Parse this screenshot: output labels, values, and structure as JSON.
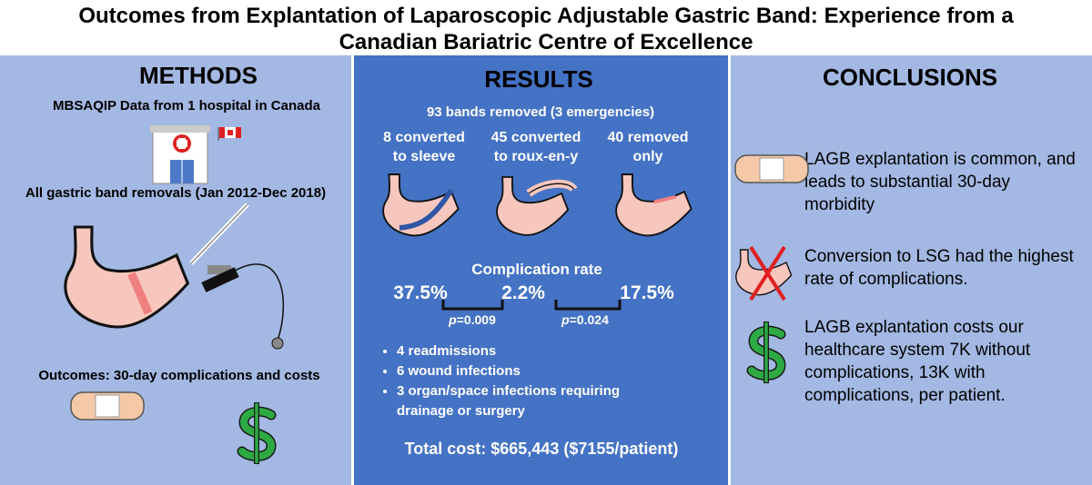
{
  "header": {
    "title_lines": [
      "Outcomes from Explantation of Laparoscopic Adjustable Gastric Band: Experience from a",
      "Canadian Bariatric Centre of Excellence"
    ]
  },
  "methods": {
    "heading": "METHODS",
    "data_source": "MBSAQIP Data from 1 hospital in Canada",
    "population": "All gastric band removals (Jan 2012-Dec 2018)",
    "outcomes": "Outcomes: 30-day complications and costs"
  },
  "results": {
    "heading": "RESULTS",
    "total": "93 bands removed (3 emergencies)",
    "groups": [
      {
        "lines": [
          "8 converted",
          "to sleeve"
        ]
      },
      {
        "lines": [
          "45 converted",
          "to roux-en-y"
        ]
      },
      {
        "lines": [
          "40 removed",
          "only"
        ]
      }
    ],
    "complication_heading": "Complication rate",
    "rates": [
      "37.5%",
      "2.2%",
      "17.5%"
    ],
    "p_values": [
      {
        "label": "p",
        "value": "=0.009"
      },
      {
        "label": "p",
        "value": "=0.024"
      }
    ],
    "bullets": [
      "4 readmissions",
      "6 wound infections",
      "3 organ/space infections requiring drainage or surgery"
    ],
    "cost": "Total cost: $665,443 ($7155/patient)"
  },
  "conclusions": {
    "heading": "CONCLUSIONS",
    "items": [
      "LAGB explantation is common, and leads to substantial 30-day morbidity",
      "Conversion to LSG had the highest rate of complications.",
      "LAGB explantation costs our healthcare system 7K without complications, 13K with complications, per patient."
    ]
  }
}
